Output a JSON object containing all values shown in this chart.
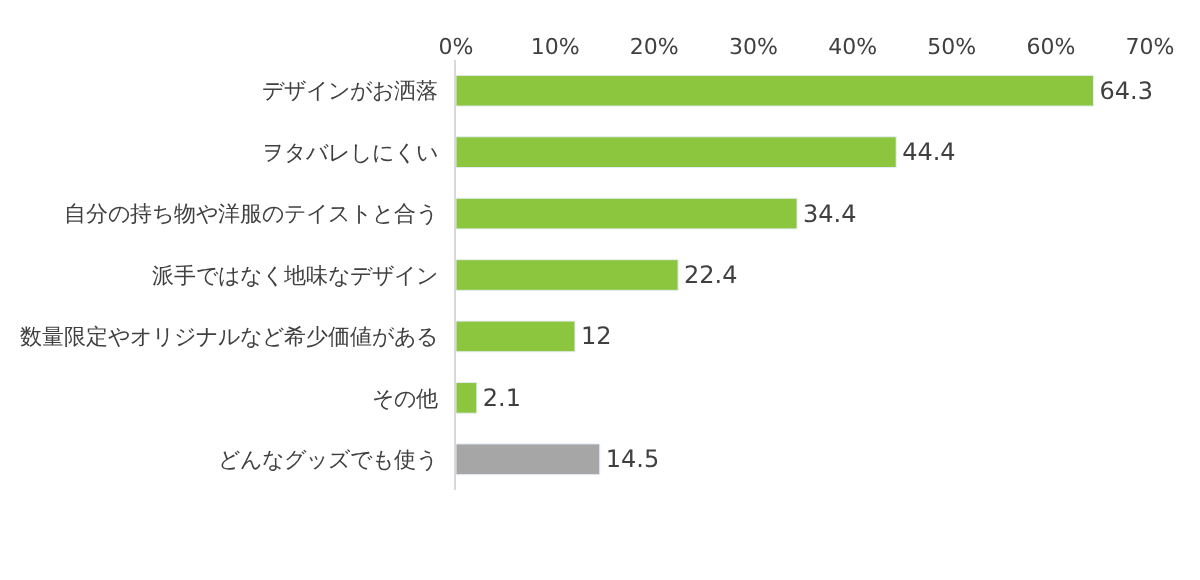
{
  "chart_data": {
    "type": "bar",
    "orientation": "horizontal",
    "categories": [
      "デザインがお洒落",
      "ヲタバレしにくい",
      "自分の持ち物や洋服のテイストと合う",
      "派手ではなく地味なデザイン",
      "数量限定やオリジナルなど希少価値がある",
      "その他",
      "どんなグッズでも使う"
    ],
    "values": [
      64.3,
      44.4,
      34.4,
      22.4,
      12,
      2.1,
      14.5
    ],
    "colors": [
      "#8cc63f",
      "#8cc63f",
      "#8cc63f",
      "#8cc63f",
      "#8cc63f",
      "#8cc63f",
      "#a6a6a6"
    ],
    "xlim": [
      0,
      70
    ],
    "xticks": [
      {
        "value": 0,
        "label": "0%"
      },
      {
        "value": 10,
        "label": "10%"
      },
      {
        "value": 20,
        "label": "20%"
      },
      {
        "value": 30,
        "label": "30%"
      },
      {
        "value": 40,
        "label": "40%"
      },
      {
        "value": 50,
        "label": "50%"
      },
      {
        "value": 60,
        "label": "60%"
      },
      {
        "value": 70,
        "label": "70%"
      }
    ],
    "data_labels": true,
    "grid": false,
    "legend": false
  }
}
